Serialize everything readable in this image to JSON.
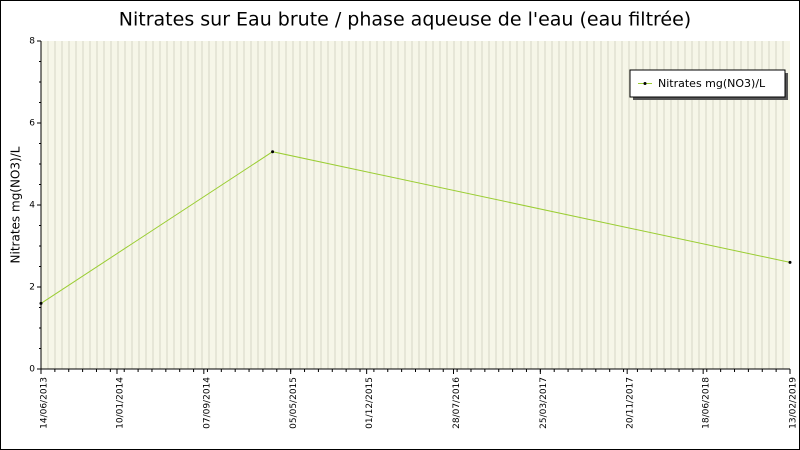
{
  "chart_data": {
    "type": "line",
    "title": "Nitrates sur Eau brute / phase aqueuse de l'eau (eau filtrée)",
    "y_label": "Nitrates mg(NO3)/L",
    "x": [
      "2013-06-14",
      "2015-03-16",
      "2019-02-13"
    ],
    "series": [
      {
        "name": "Nitrates mg(NO3)/L",
        "color": "#9acd32",
        "values": [
          1.6,
          5.3,
          2.6
        ]
      }
    ],
    "xlim": [
      "2013-06-14",
      "2019-02-13"
    ],
    "xticks": [
      {
        "value": "2013-06-14",
        "label": "14/06/2013"
      },
      {
        "value": "2014-01-10",
        "label": "10/01/2014"
      },
      {
        "value": "2014-09-07",
        "label": "07/09/2014"
      },
      {
        "value": "2015-05-05",
        "label": "05/05/2015"
      },
      {
        "value": "2015-12-01",
        "label": "01/12/2015"
      },
      {
        "value": "2016-07-28",
        "label": "28/07/2016"
      },
      {
        "value": "2017-03-25",
        "label": "25/03/2017"
      },
      {
        "value": "2017-11-20",
        "label": "20/11/2017"
      },
      {
        "value": "2018-06-18",
        "label": "18/06/2018"
      },
      {
        "value": "2019-02-13",
        "label": "13/02/2019"
      }
    ],
    "ylim": [
      0,
      8
    ],
    "yticks": [
      0,
      2,
      4,
      6,
      8
    ],
    "legend": "top-right",
    "grid": true
  }
}
